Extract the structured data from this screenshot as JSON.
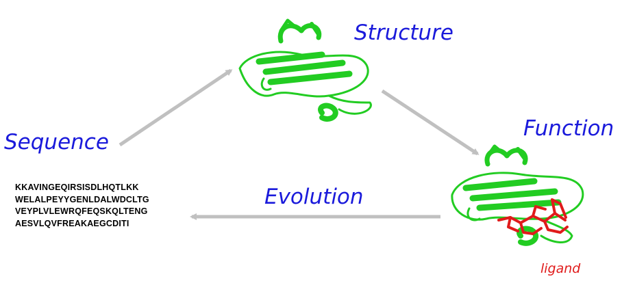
{
  "labels": {
    "structure": "Structure",
    "function": "Function",
    "sequence": "Sequence",
    "evolution": "Evolution",
    "ligand": "ligand"
  },
  "sequence_lines": [
    "KKAVINGEQIRSISDLHQTLKK",
    "WELALPEYYGENLDALWDCLTG",
    "VEYPLVLEWRQFEQSKQLTENG",
    "AESVLQVFREAKAEGCDITI"
  ],
  "colors": {
    "label": "#1a1adb",
    "arrow": "#c0c0c0",
    "protein": "#22cc22",
    "ligand": "#e01b1b"
  }
}
